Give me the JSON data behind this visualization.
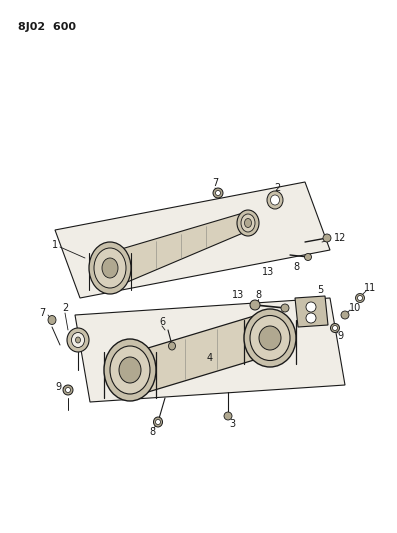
{
  "title": "8J02  600",
  "bg_color": "#ffffff",
  "line_color": "#1a1a1a",
  "text_color": "#1a1a1a",
  "fill_light": "#f0ede6",
  "fill_arm": "#d8d0bc",
  "fill_bushing": "#c8c0aa",
  "fill_bushing_dark": "#b0a890"
}
